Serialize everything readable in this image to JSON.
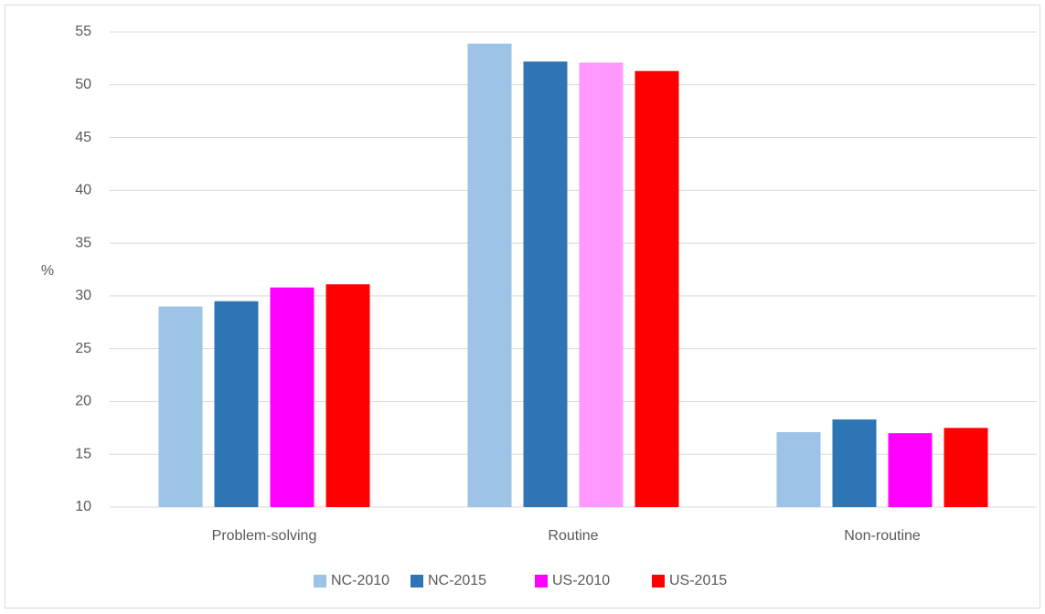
{
  "chart_data": {
    "type": "bar",
    "y_label": "%",
    "categories": [
      "Problem-solving",
      "Routine",
      "Non-routine"
    ],
    "series": [
      {
        "name": "NC-2010",
        "color": "#9dc3e6",
        "values": [
          29.0,
          53.9,
          17.1
        ]
      },
      {
        "name": "NC-2015",
        "color": "#2e75b6",
        "values": [
          29.5,
          52.2,
          18.3
        ]
      },
      {
        "name": "US-2010",
        "color": "#ff00ff",
        "bar_colors": [
          "#ff00ff",
          "#ff99ff",
          "#ff00ff"
        ],
        "values": [
          30.8,
          52.1,
          17.0
        ]
      },
      {
        "name": "US-2015",
        "color": "#ff0000",
        "values": [
          31.1,
          51.3,
          17.5
        ]
      }
    ],
    "ylim": [
      10,
      55
    ],
    "yticks": [
      10,
      15,
      20,
      25,
      30,
      35,
      40,
      45,
      50,
      55
    ],
    "grid": true,
    "legend": "bottom"
  }
}
